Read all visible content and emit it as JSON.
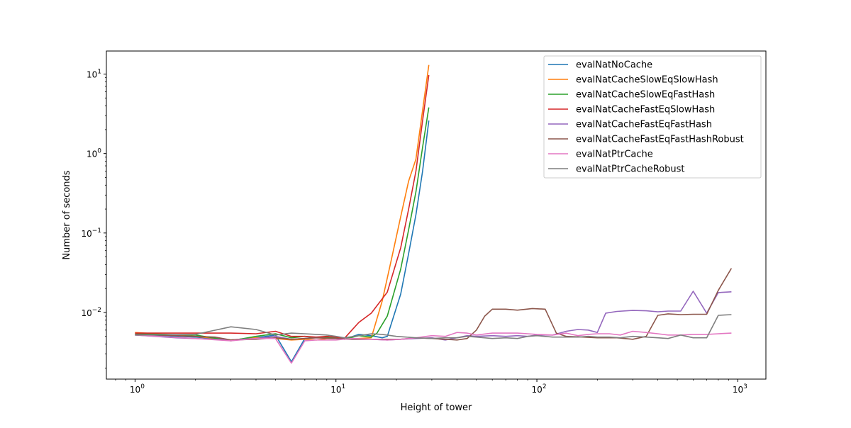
{
  "chart_data": {
    "type": "line",
    "title": "",
    "xlabel": "Height of tower",
    "ylabel": "Number of seconds",
    "xscale": "log",
    "yscale": "log",
    "xlim": [
      0.72,
      1380
    ],
    "ylim": [
      0.00145,
      19.5
    ],
    "xticks": [
      {
        "value": 1,
        "label": "10",
        "exp": "0"
      },
      {
        "value": 10,
        "label": "10",
        "exp": "1"
      },
      {
        "value": 100,
        "label": "10",
        "exp": "2"
      },
      {
        "value": 1000,
        "label": "10",
        "exp": "3"
      }
    ],
    "yticks": [
      {
        "value": 0.01,
        "label": "10",
        "exp": "−2"
      },
      {
        "value": 0.1,
        "label": "10",
        "exp": "−1"
      },
      {
        "value": 1,
        "label": "10",
        "exp": "0"
      },
      {
        "value": 10,
        "label": "10",
        "exp": "1"
      }
    ],
    "grid": false,
    "legend_position": "upper-right",
    "series": [
      {
        "name": "evalNatNoCache",
        "color": "#1f77b4",
        "x": [
          1,
          2,
          3,
          4,
          5,
          6,
          7,
          8,
          9,
          10,
          11,
          13,
          15,
          17,
          18,
          21,
          23,
          25,
          27,
          29
        ],
        "y": [
          0.0053,
          0.0049,
          0.0045,
          0.0048,
          0.0052,
          0.0024,
          0.0047,
          0.0049,
          0.0049,
          0.0048,
          0.0046,
          0.0053,
          0.0051,
          0.0048,
          0.005,
          0.017,
          0.055,
          0.17,
          0.6,
          2.6
        ]
      },
      {
        "name": "evalNatCacheSlowEqSlowHash",
        "color": "#ff7f0e",
        "x": [
          1,
          2,
          3,
          4,
          5,
          6,
          7,
          8,
          9,
          10,
          11,
          13,
          15,
          17,
          19,
          21,
          23,
          25,
          27,
          29
        ],
        "y": [
          0.0056,
          0.005,
          0.0045,
          0.0048,
          0.0047,
          0.0045,
          0.0046,
          0.0045,
          0.0047,
          0.0047,
          0.0046,
          0.0047,
          0.0048,
          0.014,
          0.05,
          0.16,
          0.45,
          0.85,
          3.5,
          13
        ]
      },
      {
        "name": "evalNatCacheSlowEqFastHash",
        "color": "#2ca02c",
        "x": [
          1,
          2,
          3,
          4,
          5,
          6,
          7,
          8,
          9,
          10,
          11,
          13,
          15,
          16,
          18,
          21,
          23,
          25,
          27,
          29
        ],
        "y": [
          0.0054,
          0.0052,
          0.0044,
          0.005,
          0.0054,
          0.0048,
          0.005,
          0.0048,
          0.0049,
          0.0048,
          0.0046,
          0.0051,
          0.0049,
          0.0055,
          0.009,
          0.035,
          0.11,
          0.33,
          1.2,
          3.8
        ]
      },
      {
        "name": "evalNatCacheFastEqSlowHash",
        "color": "#d62728",
        "x": [
          1,
          2,
          3,
          4,
          5,
          6,
          7,
          8,
          9,
          10,
          11,
          12,
          13,
          15,
          18,
          21,
          23,
          25,
          27,
          29
        ],
        "y": [
          0.0055,
          0.0055,
          0.0055,
          0.0054,
          0.0058,
          0.005,
          0.005,
          0.0049,
          0.005,
          0.0049,
          0.0047,
          0.006,
          0.0075,
          0.0098,
          0.018,
          0.065,
          0.2,
          0.6,
          2.6,
          9.7
        ]
      },
      {
        "name": "evalNatCacheFastEqFastHash",
        "color": "#9467bd",
        "x": [
          1,
          1.6,
          2.5,
          3,
          4,
          5,
          6,
          8,
          10,
          12,
          15,
          18,
          21,
          25,
          30,
          35,
          40,
          45,
          50,
          60,
          70,
          80,
          90,
          100,
          120,
          140,
          160,
          180,
          200,
          220,
          250,
          300,
          350,
          400,
          450,
          520,
          600,
          700,
          800,
          930
        ],
        "y": [
          0.0052,
          0.0048,
          0.0046,
          0.0045,
          0.0047,
          0.005,
          0.0046,
          0.0048,
          0.0047,
          0.0046,
          0.0046,
          0.0045,
          0.0046,
          0.0047,
          0.0048,
          0.0045,
          0.0048,
          0.0051,
          0.005,
          0.0051,
          0.005,
          0.0051,
          0.005,
          0.0052,
          0.0052,
          0.0058,
          0.0061,
          0.006,
          0.0056,
          0.0098,
          0.0103,
          0.0106,
          0.0105,
          0.0102,
          0.0104,
          0.0104,
          0.0185,
          0.0098,
          0.0178,
          0.0182
        ]
      },
      {
        "name": "evalNatCacheFastEqFastHashRobust",
        "color": "#8c564b",
        "x": [
          1,
          1.6,
          2.5,
          3,
          4,
          5,
          6,
          8,
          10,
          12,
          15,
          18,
          21,
          25,
          30,
          35,
          40,
          45,
          50,
          55,
          60,
          70,
          80,
          95,
          110,
          125,
          140,
          170,
          200,
          250,
          300,
          350,
          400,
          450,
          520,
          600,
          700,
          800,
          930
        ],
        "y": [
          0.0053,
          0.0051,
          0.0049,
          0.0045,
          0.0046,
          0.0048,
          0.0046,
          0.0048,
          0.0047,
          0.0046,
          0.0046,
          0.0046,
          0.0046,
          0.0048,
          0.0047,
          0.0046,
          0.0045,
          0.0047,
          0.006,
          0.009,
          0.011,
          0.011,
          0.0107,
          0.0112,
          0.011,
          0.0055,
          0.005,
          0.0049,
          0.0048,
          0.0048,
          0.0046,
          0.005,
          0.0092,
          0.0096,
          0.0094,
          0.0095,
          0.0095,
          0.019,
          0.036
        ]
      },
      {
        "name": "evalNatPtrCache",
        "color": "#e377c2",
        "x": [
          1,
          2,
          3,
          4,
          5,
          6,
          7,
          8,
          10,
          12,
          15,
          18,
          21,
          25,
          30,
          35,
          40,
          45,
          50,
          60,
          70,
          80,
          90,
          100,
          120,
          140,
          160,
          180,
          200,
          230,
          260,
          300,
          350,
          400,
          450,
          520,
          600,
          700,
          800,
          930
        ],
        "y": [
          0.0052,
          0.0047,
          0.0044,
          0.0047,
          0.0047,
          0.0023,
          0.0044,
          0.0045,
          0.0045,
          0.0047,
          0.0046,
          0.0045,
          0.0046,
          0.0048,
          0.0051,
          0.005,
          0.0056,
          0.0055,
          0.0052,
          0.0055,
          0.0055,
          0.0055,
          0.0054,
          0.0053,
          0.0052,
          0.0055,
          0.0051,
          0.0053,
          0.0054,
          0.0054,
          0.0052,
          0.0058,
          0.0056,
          0.0054,
          0.0052,
          0.0052,
          0.0053,
          0.0053,
          0.0054,
          0.0055
        ]
      },
      {
        "name": "evalNatPtrCacheRobust",
        "color": "#7f7f7f",
        "x": [
          1,
          2,
          3,
          4,
          5,
          6,
          7,
          8,
          9,
          10,
          11,
          13,
          15,
          17,
          20,
          25,
          30,
          35,
          40,
          45,
          50,
          60,
          70,
          80,
          90,
          100,
          120,
          140,
          160,
          180,
          200,
          230,
          260,
          300,
          350,
          400,
          450,
          520,
          600,
          700,
          800,
          930
        ],
        "y": [
          0.0052,
          0.0053,
          0.0066,
          0.0061,
          0.0052,
          0.0055,
          0.0054,
          0.0053,
          0.0052,
          0.005,
          0.0048,
          0.0051,
          0.0054,
          0.0053,
          0.005,
          0.0048,
          0.0047,
          0.0048,
          0.0048,
          0.005,
          0.0049,
          0.0047,
          0.0048,
          0.0047,
          0.005,
          0.0051,
          0.0049,
          0.0049,
          0.0049,
          0.005,
          0.0049,
          0.0049,
          0.0048,
          0.005,
          0.0049,
          0.0048,
          0.0047,
          0.0052,
          0.0048,
          0.0048,
          0.0092,
          0.0094
        ]
      }
    ]
  }
}
